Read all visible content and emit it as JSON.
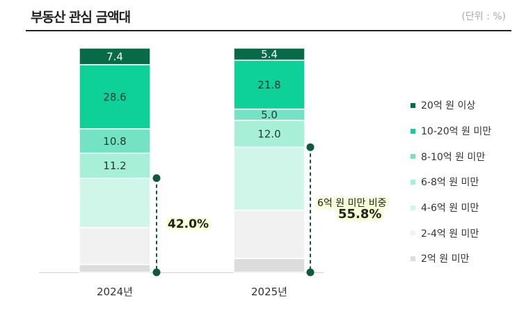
{
  "title": "부동산 관심 금액대",
  "unit": "(단위 : %)",
  "chart_data": {
    "type": "bar",
    "stacked": true,
    "categories": [
      "2024년",
      "2025년"
    ],
    "ylim": [
      0,
      100
    ],
    "grid": false,
    "legend_position": "right",
    "series": [
      {
        "name": "2억 원 미만",
        "color": "#dcdcdc",
        "values": [
          3.5,
          6.2
        ]
      },
      {
        "name": "2-4억 원 미만",
        "color": "#f1f1f1",
        "values": [
          16.5,
          21.5
        ]
      },
      {
        "name": "4-6억 원 미만",
        "color": "#cff6e8",
        "values": [
          22.0,
          28.1
        ]
      },
      {
        "name": "6-8억 원 미만",
        "color": "#a8efd7",
        "values": [
          11.2,
          12.0
        ]
      },
      {
        "name": "8-10억 원 미만",
        "color": "#74e3c4",
        "values": [
          10.8,
          5.0
        ]
      },
      {
        "name": "10-20억 원 미만",
        "color": "#0ed19a",
        "values": [
          28.6,
          21.8
        ]
      },
      {
        "name": "20억 원 이상",
        "color": "#076b48",
        "values": [
          7.4,
          5.4
        ]
      }
    ],
    "data_labels": [
      [
        "",
        ""
      ],
      [
        "",
        ""
      ],
      [
        "",
        ""
      ],
      [
        "11.2",
        "12.0"
      ],
      [
        "10.8",
        "5.0"
      ],
      [
        "28.6",
        "21.8"
      ],
      [
        "7.4",
        "5.4"
      ]
    ],
    "annotations": {
      "share_label": "6억 원 미만 비중",
      "share_values": [
        "42.0%",
        "55.8%"
      ]
    }
  }
}
